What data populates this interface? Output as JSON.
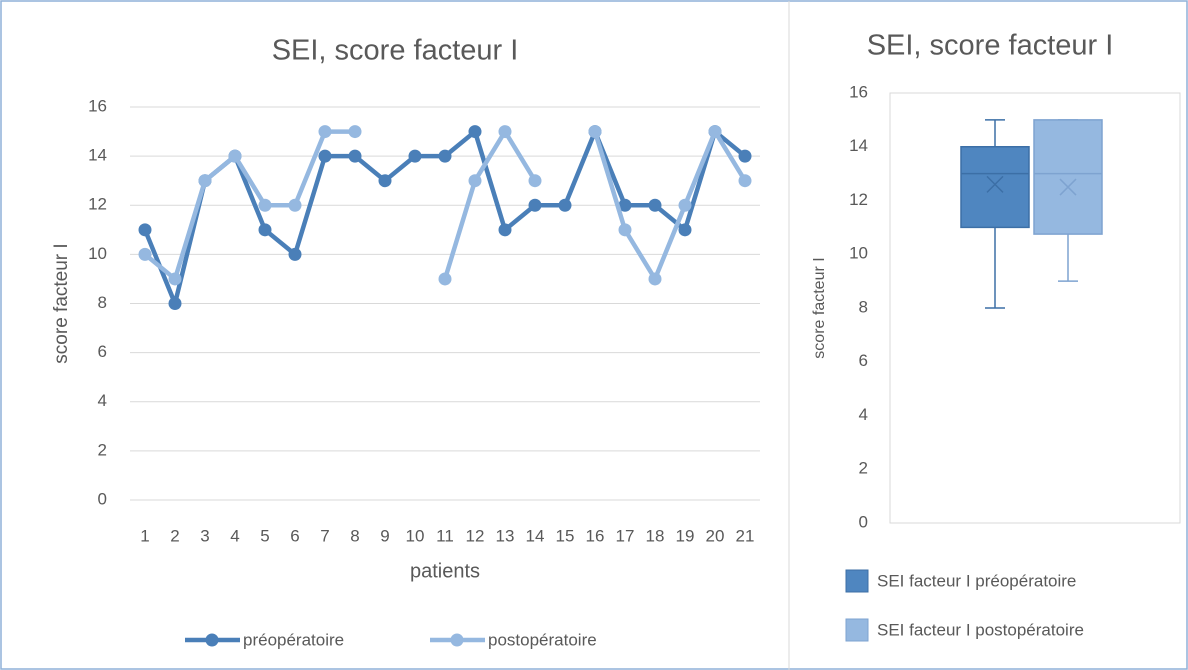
{
  "chart_data": [
    {
      "type": "line",
      "title": "SEI, score facteur I",
      "xlabel": "patients",
      "ylabel": "score facteur I",
      "categories": [
        "1",
        "2",
        "3",
        "4",
        "5",
        "6",
        "7",
        "8",
        "9",
        "10",
        "11",
        "12",
        "13",
        "14",
        "15",
        "16",
        "17",
        "18",
        "19",
        "20",
        "21"
      ],
      "series": [
        {
          "name": "préopératoire",
          "color": "#4a7fb8",
          "values": [
            11,
            8,
            13,
            14,
            11,
            10,
            14,
            14,
            13,
            14,
            14,
            15,
            11,
            12,
            12,
            15,
            12,
            12,
            11,
            15,
            14
          ]
        },
        {
          "name": "postopératoire",
          "color": "#95b8e0",
          "values": [
            10,
            9,
            13,
            14,
            12,
            12,
            15,
            15,
            null,
            null,
            9,
            13,
            15,
            13,
            null,
            15,
            11,
            9,
            12,
            15,
            13
          ]
        }
      ],
      "ylim": [
        0,
        16
      ],
      "yticks": [
        0,
        2,
        4,
        6,
        8,
        10,
        12,
        14,
        16
      ],
      "grid": true,
      "legend": "bottom"
    },
    {
      "type": "box",
      "title": "SEI, score facteur I",
      "ylabel": "score facteur I",
      "series": [
        {
          "name": "SEI facteur I préopératoire",
          "color": "#4f86c0",
          "min": 8,
          "q1": 11,
          "median": 13,
          "q3": 14,
          "max": 15,
          "mean": 12.6
        },
        {
          "name": "SEI facteur I postopératoire",
          "color": "#95b8e0",
          "min": 9,
          "q1": 10.75,
          "median": 13,
          "q3": 15,
          "max": 15,
          "mean": 12.5
        }
      ],
      "ylim": [
        0,
        16
      ],
      "yticks": [
        0,
        2,
        4,
        6,
        8,
        10,
        12,
        14,
        16
      ],
      "grid": false,
      "legend": "bottom"
    }
  ]
}
